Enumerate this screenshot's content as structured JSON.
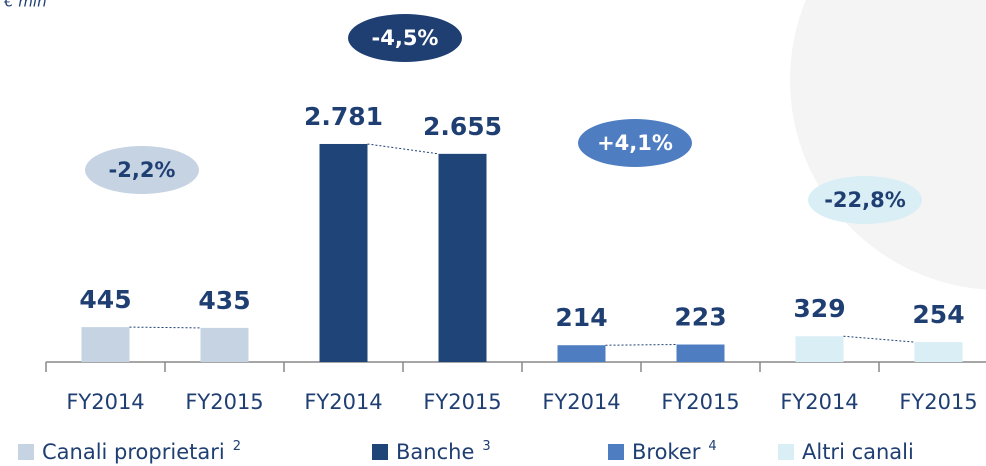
{
  "chart_data": {
    "type": "bar",
    "unit_label": "€ mln",
    "categories": [
      "FY2014",
      "FY2015"
    ],
    "ylim": [
      0,
      3000
    ],
    "series": [
      {
        "name": "Canali proprietari",
        "note": "2",
        "color": "#c5d3e3",
        "values": [
          445,
          435
        ],
        "change": "-2,2%"
      },
      {
        "name": "Banche",
        "note": "3",
        "color": "#1f4578",
        "values": [
          2781,
          2655
        ],
        "value_labels": [
          "2.781",
          "2.655"
        ],
        "change": "-4,5%"
      },
      {
        "name": "Broker",
        "note": "4",
        "color": "#4e7ec1",
        "values": [
          214,
          223
        ],
        "change": "+4,1%"
      },
      {
        "name": "Altri canali",
        "color": "#daeef5",
        "values": [
          329,
          254
        ],
        "change": "-22,8%"
      }
    ]
  }
}
